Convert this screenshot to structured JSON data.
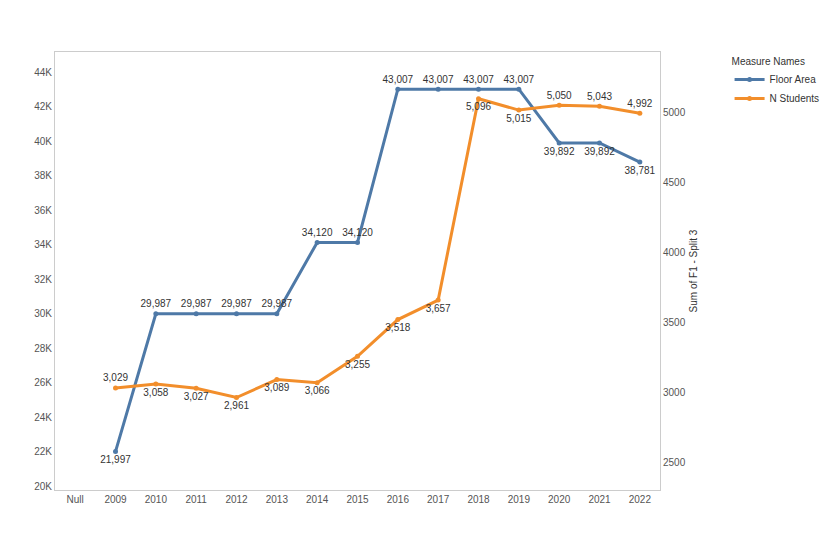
{
  "chart_data": {
    "type": "line",
    "legend_title": "Measure Names",
    "y2_label": "Sum of F1 - Split 3",
    "categories": [
      "Null",
      "2009",
      "2010",
      "2011",
      "2012",
      "2013",
      "2014",
      "2015",
      "2016",
      "2017",
      "2018",
      "2019",
      "2020",
      "2021",
      "2022"
    ],
    "series": [
      {
        "name": "Floor Area",
        "color": "#4e79a7",
        "axis": "y",
        "values": [
          null,
          21997,
          29987,
          29987,
          29987,
          29987,
          34120,
          34120,
          43007,
          43007,
          43007,
          43007,
          39892,
          39892,
          38781
        ],
        "value_labels": [
          null,
          "21,997",
          "29,987",
          "29,987",
          "29,987",
          "29,987",
          "34,120",
          "34,120",
          "43,007",
          "43,007",
          "43,007",
          "43,007",
          "39,892",
          "39,892",
          "38,781"
        ]
      },
      {
        "name": "N Students",
        "color": "#f28e2b",
        "axis": "y2",
        "values": [
          null,
          3029,
          3058,
          3027,
          2961,
          3089,
          3066,
          3255,
          3518,
          3657,
          5096,
          5015,
          5050,
          5043,
          4992
        ],
        "value_labels": [
          null,
          "3,029",
          "3,058",
          "3,027",
          "2,961",
          "3,089",
          "3,066",
          "3,255",
          "3,518",
          "3,657",
          "5,096",
          "5,015",
          "5,050",
          "5,043",
          "4,992"
        ]
      }
    ],
    "ylim": [
      19770,
      45160
    ],
    "yticks": [
      {
        "value": 20000,
        "label": "20K"
      },
      {
        "value": 22000,
        "label": "22K"
      },
      {
        "value": 24000,
        "label": "24K"
      },
      {
        "value": 26000,
        "label": "26K"
      },
      {
        "value": 28000,
        "label": "28K"
      },
      {
        "value": 30000,
        "label": "30K"
      },
      {
        "value": 32000,
        "label": "32K"
      },
      {
        "value": 34000,
        "label": "34K"
      },
      {
        "value": 36000,
        "label": "36K"
      },
      {
        "value": 38000,
        "label": "38K"
      },
      {
        "value": 40000,
        "label": "40K"
      },
      {
        "value": 42000,
        "label": "42K"
      },
      {
        "value": 44000,
        "label": "44K"
      }
    ],
    "y2lim": [
      2300,
      5430
    ],
    "y2ticks": [
      2500,
      3000,
      3500,
      4000,
      4500,
      5000
    ],
    "data_labels": true,
    "grid": false,
    "legend": "top right",
    "marker": "circle"
  }
}
